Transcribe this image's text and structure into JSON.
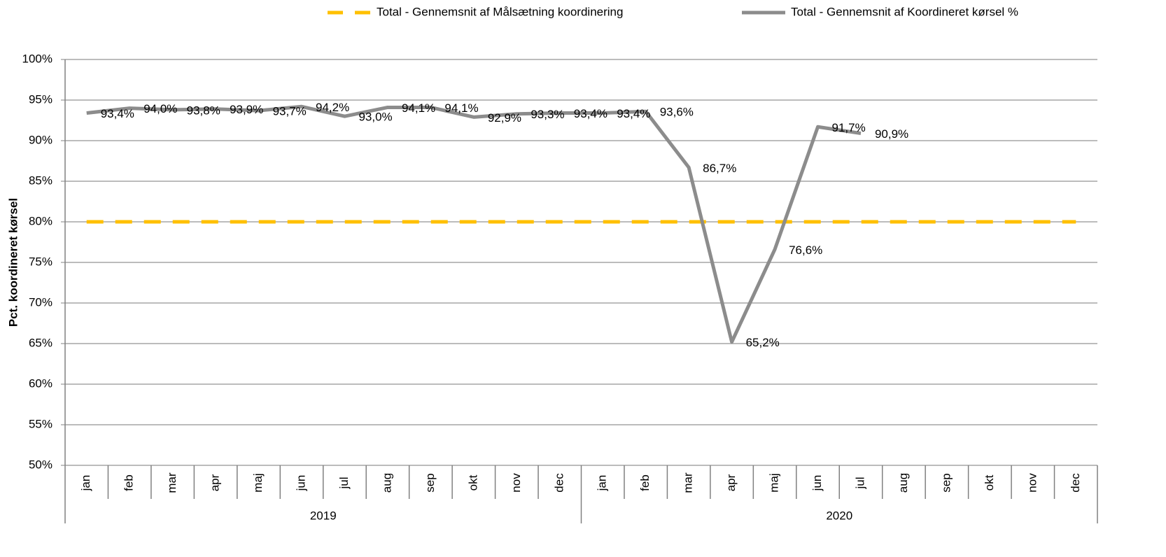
{
  "chart_data": {
    "type": "line",
    "y_label": "Pct. koordineret kørsel",
    "categories": [
      "jan",
      "feb",
      "mar",
      "apr",
      "maj",
      "jun",
      "jul",
      "aug",
      "sep",
      "okt",
      "nov",
      "dec",
      "jan",
      "feb",
      "mar",
      "apr",
      "maj",
      "jun",
      "jul",
      "aug",
      "sep",
      "okt",
      "nov",
      "dec"
    ],
    "groups": [
      "2019",
      "2020"
    ],
    "series": [
      {
        "name": "Total - Gennemsnit af Målsætning koordinering",
        "color": "#ffc000",
        "dashed": true,
        "values": [
          80,
          80,
          80,
          80,
          80,
          80,
          80,
          80,
          80,
          80,
          80,
          80,
          80,
          80,
          80,
          80,
          80,
          80,
          80,
          80,
          80,
          80,
          80,
          80
        ]
      },
      {
        "name": "Total - Gennemsnit af Koordineret kørsel %",
        "color": "#8c8c8c",
        "dashed": false,
        "values": [
          93.4,
          94.0,
          93.8,
          93.9,
          93.7,
          94.2,
          93.0,
          94.1,
          94.1,
          92.9,
          93.3,
          93.4,
          93.4,
          93.6,
          86.7,
          65.2,
          76.6,
          91.7,
          90.9,
          null,
          null,
          null,
          null,
          null
        ],
        "value_labels": [
          "93,4%",
          "94,0%",
          "93,8%",
          "93,9%",
          "93,7%",
          "94,2%",
          "93,0%",
          "94,1%",
          "94,1%",
          "92,9%",
          "93,3%",
          "93,4%",
          "93,4%",
          "93,6%",
          "86,7%",
          "65,2%",
          "76,6%",
          "91,7%",
          "90,9%",
          null,
          null,
          null,
          null,
          null
        ]
      }
    ],
    "ylim": [
      50,
      100
    ],
    "yticks": [
      {
        "value": 50,
        "label": "50%"
      },
      {
        "value": 55,
        "label": "55%"
      },
      {
        "value": 60,
        "label": "60%"
      },
      {
        "value": 65,
        "label": "65%"
      },
      {
        "value": 70,
        "label": "70%"
      },
      {
        "value": 75,
        "label": "75%"
      },
      {
        "value": 80,
        "label": "80%"
      },
      {
        "value": 85,
        "label": "85%"
      },
      {
        "value": 90,
        "label": "90%"
      },
      {
        "value": 95,
        "label": "95%"
      },
      {
        "value": 100,
        "label": "100%"
      }
    ],
    "grid": true,
    "legend": "top"
  }
}
